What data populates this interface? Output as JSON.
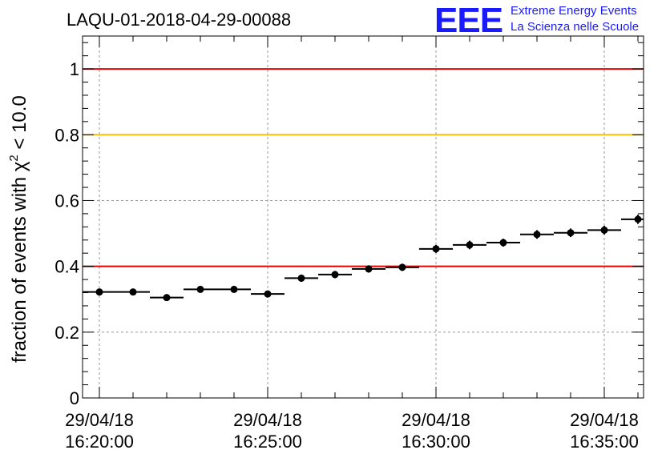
{
  "header": {
    "title": "LAQU-01-2018-04-29-00088",
    "logo_letters": "EEE",
    "logo_line1": "Extreme Energy Events",
    "logo_line2": "La Scienza nelle Scuole"
  },
  "chart_data": {
    "type": "scatter",
    "title": "LAQU-01-2018-04-29-00088",
    "ylabel_main": "fraction of events with χ",
    "ylabel_sup": "2",
    "ylabel_tail": " < 10.0",
    "xlabel": "",
    "xlim": [
      "2018-04-29 16:19:30",
      "2018-04-29 16:36:10"
    ],
    "ylim": [
      0,
      1.1
    ],
    "yticks": [
      {
        "value": 0,
        "label": "0"
      },
      {
        "value": 0.2,
        "label": "0.2"
      },
      {
        "value": 0.4,
        "label": "0.4"
      },
      {
        "value": 0.6,
        "label": "0.6"
      },
      {
        "value": 0.8,
        "label": "0.8"
      },
      {
        "value": 1.0,
        "label": "1"
      }
    ],
    "xticks": [
      {
        "value": "2018-04-29 16:20:00",
        "label_date": "29/04/18",
        "label_time": "16:20:00"
      },
      {
        "value": "2018-04-29 16:25:00",
        "label_date": "29/04/18",
        "label_time": "16:25:00"
      },
      {
        "value": "2018-04-29 16:30:00",
        "label_date": "29/04/18",
        "label_time": "16:30:00"
      },
      {
        "value": "2018-04-29 16:35:00",
        "label_date": "29/04/18",
        "label_time": "16:35:00"
      }
    ],
    "reference_lines": [
      {
        "y": 1.0,
        "color": "#e60000"
      },
      {
        "y": 0.8,
        "color": "#ffbf00"
      },
      {
        "y": 0.4,
        "color": "#e60000"
      }
    ],
    "grid": true,
    "bin_width_seconds": 60,
    "points": [
      {
        "x": "2018-04-29 16:20:00",
        "y": 0.322
      },
      {
        "x": "2018-04-29 16:21:00",
        "y": 0.322
      },
      {
        "x": "2018-04-29 16:22:00",
        "y": 0.305
      },
      {
        "x": "2018-04-29 16:23:00",
        "y": 0.33
      },
      {
        "x": "2018-04-29 16:24:00",
        "y": 0.33
      },
      {
        "x": "2018-04-29 16:25:00",
        "y": 0.316
      },
      {
        "x": "2018-04-29 16:26:00",
        "y": 0.364
      },
      {
        "x": "2018-04-29 16:27:00",
        "y": 0.375
      },
      {
        "x": "2018-04-29 16:28:00",
        "y": 0.392
      },
      {
        "x": "2018-04-29 16:29:00",
        "y": 0.397
      },
      {
        "x": "2018-04-29 16:30:00",
        "y": 0.453
      },
      {
        "x": "2018-04-29 16:31:00",
        "y": 0.465
      },
      {
        "x": "2018-04-29 16:32:00",
        "y": 0.472
      },
      {
        "x": "2018-04-29 16:33:00",
        "y": 0.497
      },
      {
        "x": "2018-04-29 16:34:00",
        "y": 0.502
      },
      {
        "x": "2018-04-29 16:35:00",
        "y": 0.51
      },
      {
        "x": "2018-04-29 16:36:00",
        "y": 0.543
      }
    ],
    "y_errors": [
      0.01,
      0.009,
      0.01,
      0.01,
      0.01,
      0.01,
      0.011,
      0.011,
      0.011,
      0.011,
      0.012,
      0.013,
      0.012,
      0.013,
      0.013,
      0.013,
      0.014
    ],
    "marker_color": "#000000"
  }
}
